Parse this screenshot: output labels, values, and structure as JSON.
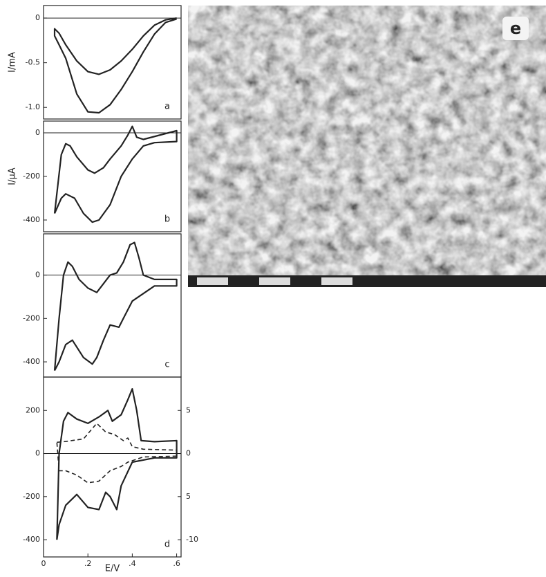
{
  "chart_data": [
    {
      "type": "line",
      "ylabel": "I/mA",
      "label": "a",
      "xlim": [
        0,
        0.62
      ],
      "ylim": [
        -1.13,
        0.14
      ],
      "yticks": [
        0,
        -0.5,
        {
          "value": -1,
          "label": "-1.0"
        }
      ],
      "zero_line": true,
      "series": [
        {
          "color": "#222",
          "x": [
            0.6,
            0.55,
            0.5,
            0.45,
            0.4,
            0.35,
            0.3,
            0.25,
            0.2,
            0.15,
            0.1,
            0.07,
            0.05,
            0.05,
            0.07,
            0.1,
            0.15,
            0.2,
            0.25,
            0.3,
            0.35,
            0.4,
            0.45,
            0.5,
            0.55,
            0.6
          ],
          "values": [
            0,
            -0.02,
            -0.08,
            -0.2,
            -0.35,
            -0.48,
            -0.58,
            -0.63,
            -0.6,
            -0.48,
            -0.3,
            -0.17,
            -0.12,
            -0.2,
            -0.3,
            -0.45,
            -0.85,
            -1.05,
            -1.06,
            -0.97,
            -0.8,
            -0.6,
            -0.38,
            -0.18,
            -0.05,
            -0.01
          ]
        }
      ]
    },
    {
      "type": "line",
      "ylabel": "I/μA",
      "label": "b",
      "xlim": [
        0,
        0.62
      ],
      "ylim": [
        -454,
        54
      ],
      "yticks": [
        0,
        -200,
        -400
      ],
      "zero_line": true,
      "series": [
        {
          "color": "#222",
          "x": [
            0.05,
            0.08,
            0.1,
            0.12,
            0.15,
            0.2,
            0.23,
            0.27,
            0.3,
            0.35,
            0.38,
            0.4,
            0.42,
            0.45,
            0.6,
            0.6,
            0.5,
            0.45,
            0.4,
            0.35,
            0.3,
            0.25,
            0.22,
            0.18,
            0.14,
            0.1,
            0.08,
            0.05
          ],
          "values": [
            -370,
            -100,
            -50,
            -60,
            -110,
            -170,
            -185,
            -160,
            -120,
            -60,
            -10,
            30,
            -20,
            -30,
            10,
            -40,
            -45,
            -60,
            -120,
            -200,
            -330,
            -400,
            -410,
            -370,
            -300,
            -280,
            -300,
            -370
          ]
        }
      ]
    },
    {
      "type": "line",
      "label": "c",
      "xlim": [
        0,
        0.62
      ],
      "ylim": [
        -470,
        190
      ],
      "yticks": [
        0,
        -200,
        -400
      ],
      "zero_line": true,
      "series": [
        {
          "color": "#222",
          "x": [
            0.05,
            0.07,
            0.09,
            0.11,
            0.13,
            0.16,
            0.2,
            0.24,
            0.27,
            0.3,
            0.33,
            0.36,
            0.39,
            0.41,
            0.43,
            0.45,
            0.5,
            0.6,
            0.6,
            0.5,
            0.4,
            0.36,
            0.34,
            0.3,
            0.27,
            0.24,
            0.22,
            0.18,
            0.13,
            0.1,
            0.07,
            0.05
          ],
          "values": [
            -440,
            -200,
            0,
            60,
            40,
            -20,
            -60,
            -80,
            -40,
            0,
            10,
            60,
            140,
            150,
            80,
            0,
            -20,
            -20,
            -50,
            -50,
            -120,
            -200,
            -240,
            -230,
            -300,
            -380,
            -410,
            -380,
            -300,
            -320,
            -400,
            -440
          ]
        }
      ]
    },
    {
      "type": "line",
      "label": "d",
      "xlabel": "E/V",
      "xlim": [
        0,
        0.62
      ],
      "ylim": [
        -480,
        355
      ],
      "y2lim": [
        -12,
        8.875
      ],
      "xticks": [
        0,
        {
          "value": 0.2,
          "label": ".2"
        },
        {
          "value": 0.4,
          "label": ".4"
        },
        {
          "value": 0.6,
          "label": ".6"
        }
      ],
      "yticks": [
        200,
        0,
        -200,
        -400
      ],
      "y2ticks": [
        5,
        0,
        {
          "value": -5,
          "label": "5"
        },
        -10
      ],
      "zero_line": true,
      "series": [
        {
          "color": "#222",
          "x": [
            0.06,
            0.07,
            0.09,
            0.11,
            0.15,
            0.2,
            0.25,
            0.29,
            0.31,
            0.35,
            0.38,
            0.4,
            0.42,
            0.44,
            0.5,
            0.6,
            0.6,
            0.5,
            0.45,
            0.4,
            0.35,
            0.33,
            0.3,
            0.28,
            0.25,
            0.2,
            0.15,
            0.1,
            0.07,
            0.06
          ],
          "values": [
            -400,
            0,
            150,
            190,
            160,
            140,
            170,
            200,
            150,
            180,
            250,
            300,
            200,
            60,
            55,
            60,
            -20,
            -20,
            -30,
            -40,
            -150,
            -260,
            -200,
            -180,
            -260,
            -250,
            -190,
            -240,
            -330,
            -400
          ]
        },
        {
          "color": "#222",
          "dash": true,
          "axis": "y2",
          "x": [
            0.06,
            0.1,
            0.18,
            0.24,
            0.28,
            0.32,
            0.36,
            0.38,
            0.4,
            0.45,
            0.6,
            0.6,
            0.45,
            0.38,
            0.35,
            0.3,
            0.25,
            0.2,
            0.15,
            0.1,
            0.07,
            0.06
          ],
          "values": [
            1.3,
            1.4,
            1.7,
            3.5,
            2.5,
            2.2,
            1.5,
            1.8,
            0.8,
            0.5,
            0.4,
            -0.3,
            -0.4,
            -1,
            -1.5,
            -2,
            -3.2,
            -3.4,
            -2.5,
            -2,
            -2,
            1.3
          ]
        }
      ]
    }
  ],
  "photo": {
    "label": "e"
  }
}
